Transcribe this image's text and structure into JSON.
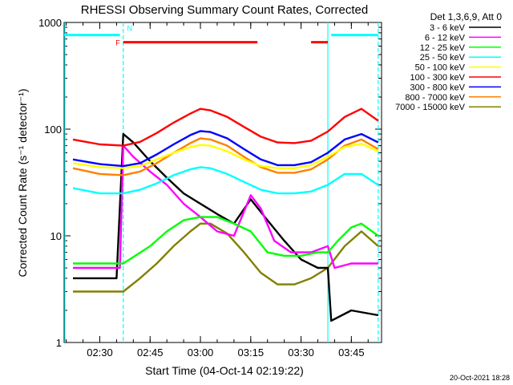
{
  "chart_data": {
    "type": "line",
    "title": "RHESSI Observing Summary Count Rates, Corrected",
    "xlabel": "Start Time (04-Oct-14 02:19:22)",
    "ylabel": "Corrected Count Rate (s⁻¹ detector⁻¹)",
    "yscale": "log",
    "ylim": [
      1,
      1000
    ],
    "xlim": [
      "02:19:22",
      "03:54:00"
    ],
    "x_ticks": [
      "02:30",
      "02:45",
      "03:00",
      "03:15",
      "03:30",
      "03:45"
    ],
    "y_ticks": [
      "1",
      "10",
      "100",
      "1000"
    ],
    "legend_title": "Det 1,3,6,9, Att 0",
    "legend_position": "right",
    "flag_labels": {
      "f": "F",
      "n": "N"
    },
    "flags": {
      "f_bars": [
        [
          "02:37",
          "03:17"
        ],
        [
          "03:33",
          "03:38"
        ]
      ],
      "n_bars": [
        [
          "02:19",
          "02:36"
        ],
        [
          "03:39",
          "03:53"
        ]
      ],
      "cyan_boundaries": [
        "02:19",
        "02:37",
        "03:38",
        "03:53"
      ]
    },
    "timestamp": "20-Oct-2021 18:28",
    "series": [
      {
        "name": "3 - 6 keV",
        "color": "#000000",
        "t": [
          "02:22",
          "02:35",
          "02:37",
          "02:40",
          "02:45",
          "02:50",
          "02:55",
          "03:00",
          "03:05",
          "03:10",
          "03:15",
          "03:20",
          "03:25",
          "03:30",
          "03:35",
          "03:38",
          "03:39",
          "03:45",
          "03:53"
        ],
        "v": [
          4,
          4,
          90,
          75,
          50,
          35,
          25,
          20,
          16,
          13,
          22,
          14,
          9,
          6,
          5,
          5,
          1.6,
          2,
          1.8
        ]
      },
      {
        "name": "6 - 12 keV",
        "color": "#ff00ff",
        "t": [
          "02:22",
          "02:30",
          "02:36",
          "02:37",
          "02:40",
          "02:45",
          "02:50",
          "02:55",
          "03:00",
          "03:05",
          "03:10",
          "03:15",
          "03:18",
          "03:22",
          "03:27",
          "03:33",
          "03:38",
          "03:40",
          "03:45",
          "03:53"
        ],
        "v": [
          5,
          5,
          5,
          70,
          55,
          40,
          30,
          20,
          15,
          11,
          10,
          24,
          18,
          9,
          7,
          7,
          8,
          5,
          5.5,
          5.5
        ]
      },
      {
        "name": "12 - 25 keV",
        "color": "#00ff00",
        "t": [
          "02:22",
          "02:37",
          "02:45",
          "02:50",
          "02:55",
          "03:00",
          "03:05",
          "03:10",
          "03:15",
          "03:20",
          "03:25",
          "03:30",
          "03:35",
          "03:38",
          "03:41",
          "03:45",
          "03:48",
          "03:53"
        ],
        "v": [
          5.5,
          5.5,
          8,
          11,
          14,
          15,
          15,
          13,
          11,
          7,
          6.5,
          6.5,
          7,
          7,
          9,
          12,
          13,
          10
        ]
      },
      {
        "name": "25 - 50 keV",
        "color": "#00ffff",
        "t": [
          "02:22",
          "02:30",
          "02:37",
          "02:42",
          "02:47",
          "02:52",
          "02:57",
          "03:00",
          "03:03",
          "03:08",
          "03:13",
          "03:18",
          "03:23",
          "03:28",
          "03:33",
          "03:38",
          "03:43",
          "03:48",
          "03:53"
        ],
        "v": [
          28,
          25,
          25,
          27,
          31,
          37,
          42,
          44,
          43,
          38,
          32,
          27,
          25,
          25,
          26,
          30,
          38,
          38,
          30
        ]
      },
      {
        "name": "50 - 100 keV",
        "color": "#ffff00",
        "t": [
          "02:22",
          "02:30",
          "02:37",
          "02:42",
          "02:47",
          "02:52",
          "02:57",
          "03:00",
          "03:03",
          "03:08",
          "03:13",
          "03:18",
          "03:23",
          "03:28",
          "03:33",
          "03:38",
          "03:43",
          "03:48",
          "03:53"
        ],
        "v": [
          48,
          44,
          43,
          45,
          52,
          60,
          68,
          71,
          70,
          62,
          52,
          45,
          43,
          43,
          46,
          55,
          68,
          73,
          62
        ]
      },
      {
        "name": "100 - 300 keV",
        "color": "#ff0000",
        "t": [
          "02:22",
          "02:30",
          "02:37",
          "02:42",
          "02:47",
          "02:52",
          "02:57",
          "03:00",
          "03:03",
          "03:08",
          "03:13",
          "03:18",
          "03:23",
          "03:28",
          "03:33",
          "03:38",
          "03:43",
          "03:48",
          "03:53"
        ],
        "v": [
          80,
          72,
          70,
          76,
          92,
          115,
          140,
          155,
          150,
          130,
          105,
          85,
          75,
          74,
          78,
          95,
          130,
          155,
          120
        ]
      },
      {
        "name": "300 - 800 keV",
        "color": "#0000ff",
        "t": [
          "02:22",
          "02:30",
          "02:37",
          "02:42",
          "02:47",
          "02:52",
          "02:57",
          "03:00",
          "03:03",
          "03:08",
          "03:13",
          "03:18",
          "03:23",
          "03:28",
          "03:33",
          "03:38",
          "03:43",
          "03:48",
          "03:53"
        ],
        "v": [
          52,
          47,
          45,
          48,
          58,
          72,
          88,
          96,
          94,
          82,
          65,
          52,
          46,
          46,
          49,
          60,
          80,
          90,
          75
        ]
      },
      {
        "name": "800 - 7000 keV",
        "color": "#ff8000",
        "t": [
          "02:22",
          "02:30",
          "02:37",
          "02:42",
          "02:47",
          "02:52",
          "02:57",
          "03:00",
          "03:03",
          "03:08",
          "03:13",
          "03:18",
          "03:23",
          "03:28",
          "03:33",
          "03:38",
          "03:43",
          "03:48",
          "03:53"
        ],
        "v": [
          43,
          38,
          37,
          40,
          48,
          60,
          74,
          82,
          80,
          70,
          55,
          44,
          39,
          39,
          42,
          52,
          70,
          80,
          65
        ]
      },
      {
        "name": "7000 - 15000 keV",
        "color": "#808000",
        "t": [
          "02:22",
          "02:30",
          "02:37",
          "02:42",
          "02:47",
          "02:52",
          "02:57",
          "03:00",
          "03:03",
          "03:08",
          "03:13",
          "03:18",
          "03:23",
          "03:28",
          "03:33",
          "03:38",
          "03:43",
          "03:48",
          "03:53"
        ],
        "v": [
          3,
          3,
          3,
          4,
          5.5,
          8,
          11,
          13,
          13,
          10.5,
          7,
          4.5,
          3.5,
          3.5,
          4,
          5,
          8,
          11,
          8
        ]
      }
    ]
  }
}
